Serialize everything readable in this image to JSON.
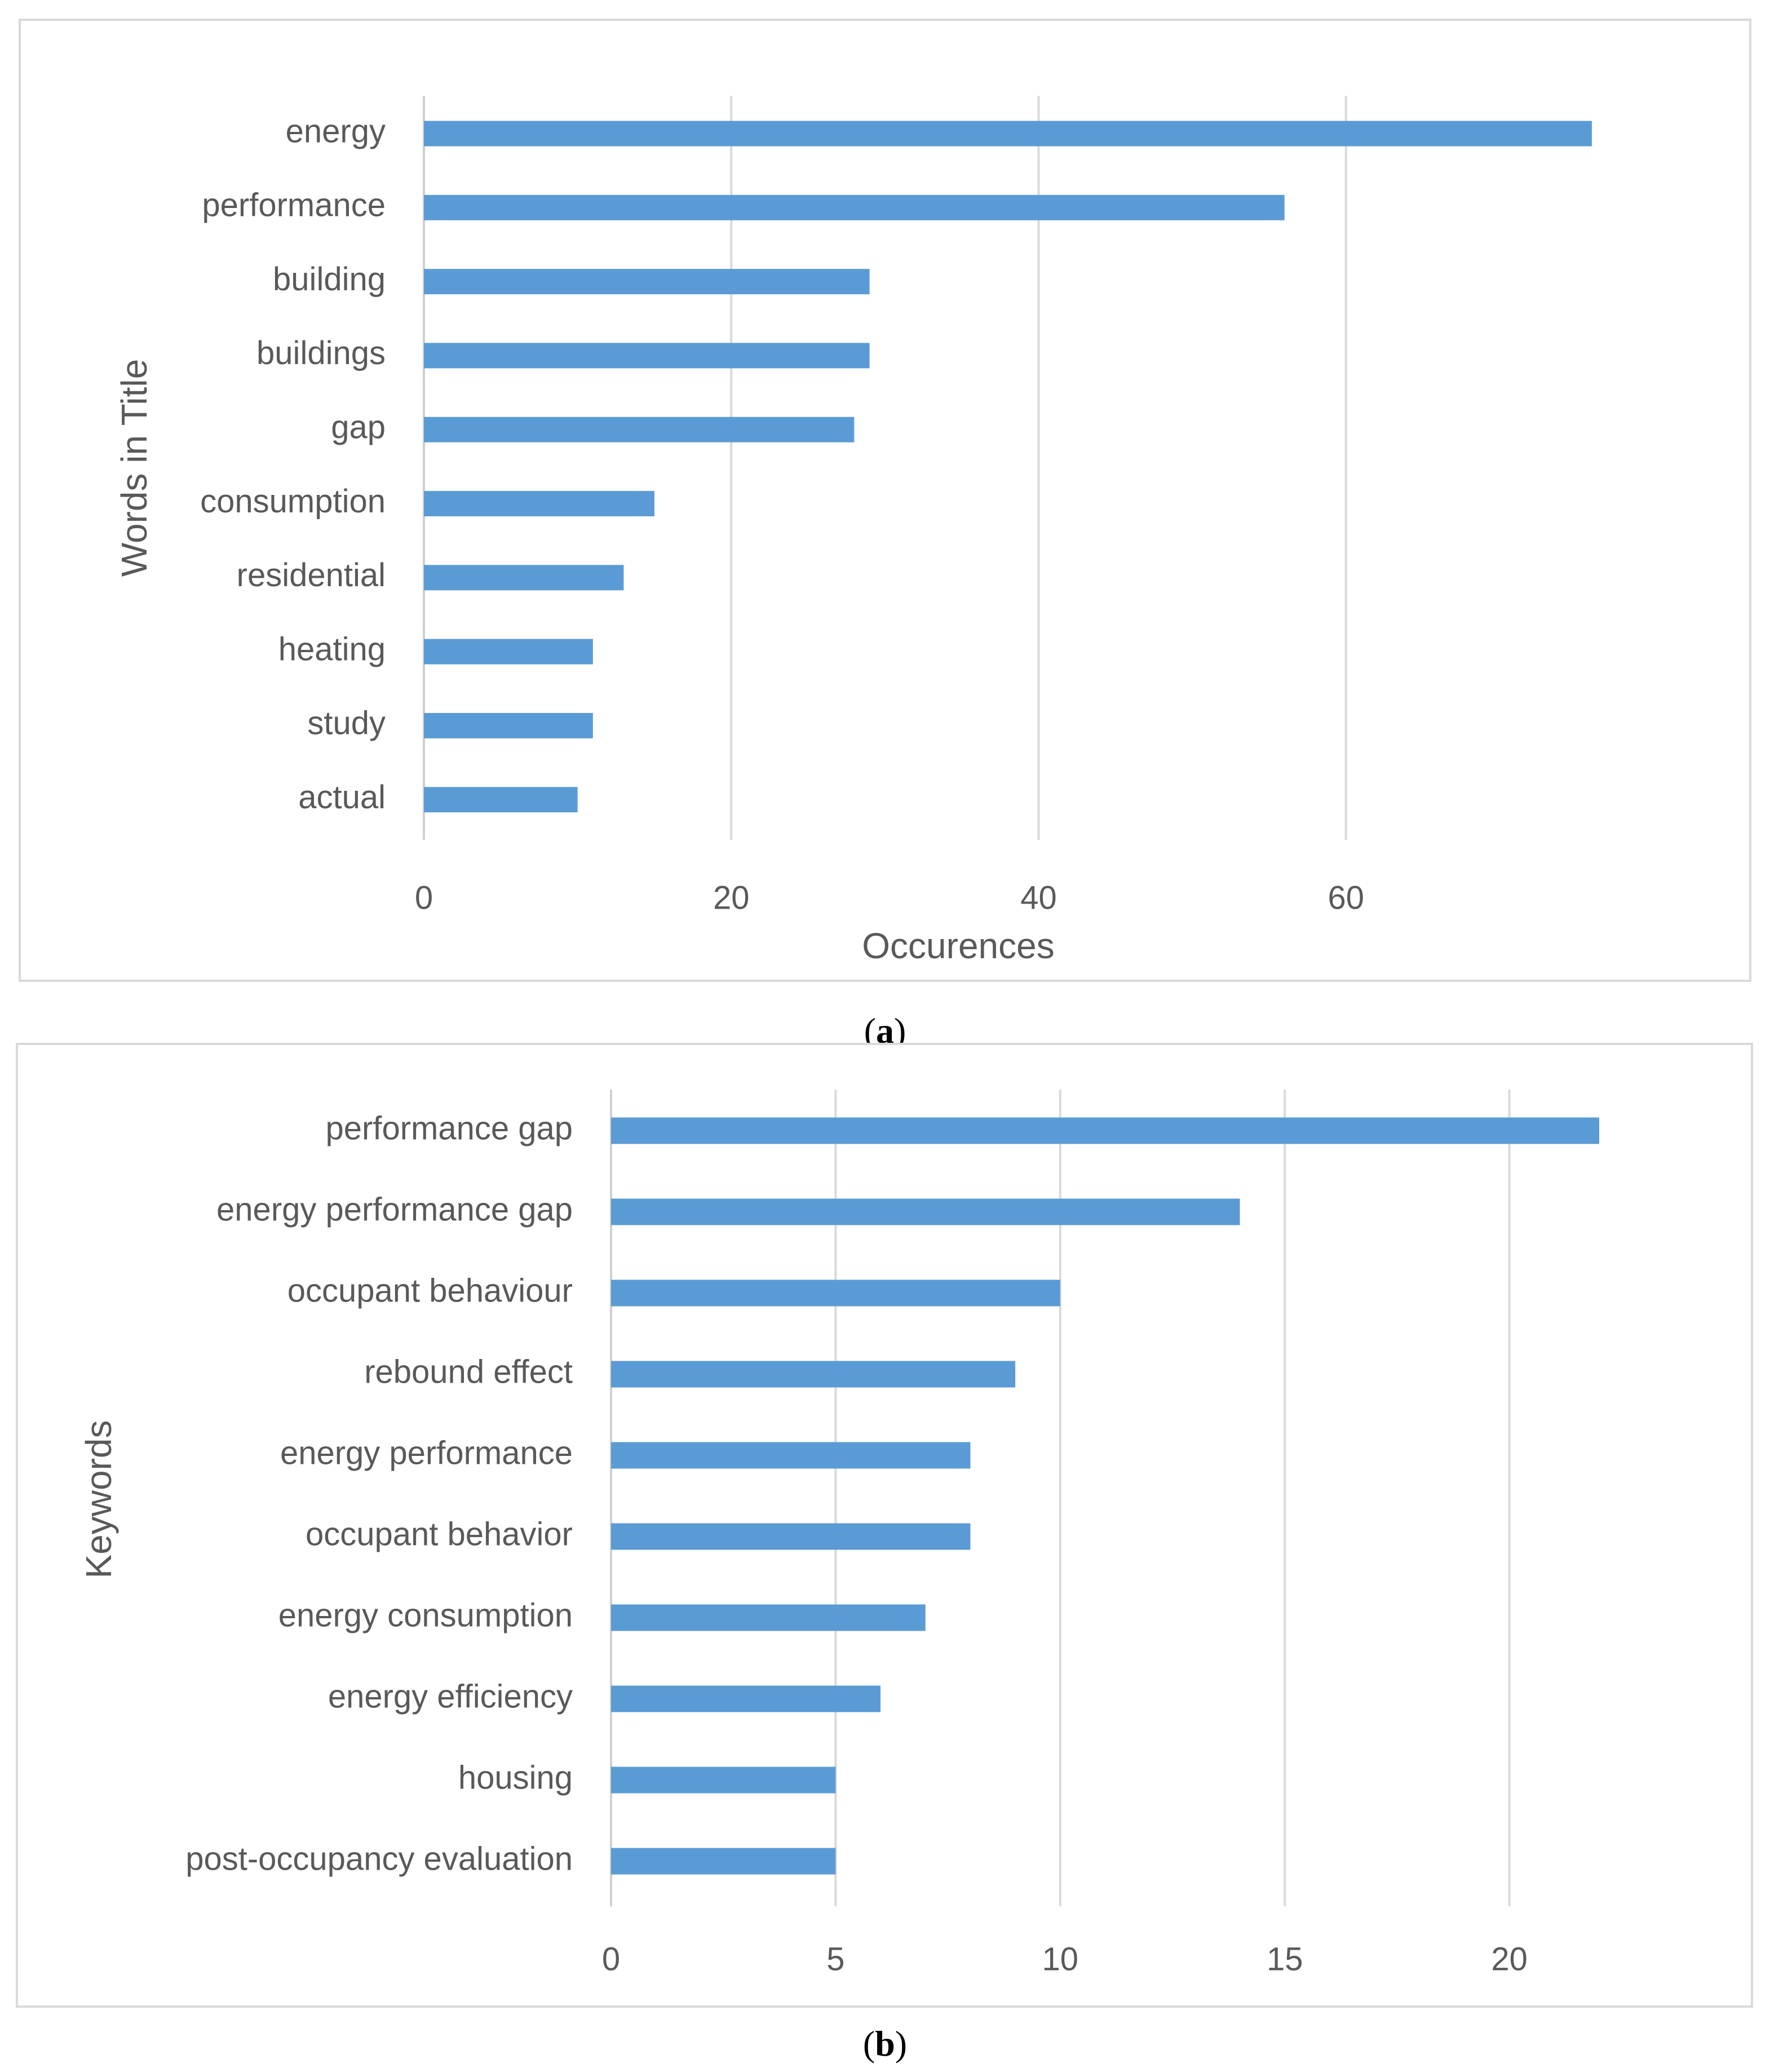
{
  "chart_data": [
    {
      "type": "bar",
      "orientation": "horizontal",
      "panel_label": "a",
      "title": "",
      "xlabel": "Occurences",
      "ylabel": "Words in Title",
      "categories": [
        "energy",
        "performance",
        "building",
        "buildings",
        "gap",
        "consumption",
        "residential",
        "heating",
        "study",
        "actual"
      ],
      "values": [
        76,
        56,
        29,
        29,
        28,
        15,
        13,
        11,
        11,
        10
      ],
      "xlim": [
        0,
        80
      ],
      "xticks": [
        0,
        20,
        40,
        60
      ],
      "grid": true,
      "bar_color": "#5b9bd5"
    },
    {
      "type": "bar",
      "orientation": "horizontal",
      "panel_label": "b",
      "title": "",
      "xlabel": "",
      "ylabel": "Keywords",
      "categories": [
        "performance gap",
        "energy performance gap",
        "occupant behaviour",
        "rebound effect",
        "energy performance",
        "occupant behavior",
        "energy consumption",
        "energy efficiency",
        "housing",
        "post-occupancy evaluation"
      ],
      "values": [
        22,
        14,
        10,
        9,
        8,
        8,
        7,
        6,
        5,
        5
      ],
      "xlim": [
        0,
        22
      ],
      "xticks": [
        0,
        5,
        10,
        15,
        20
      ],
      "grid": true,
      "bar_color": "#5b9bd5"
    }
  ]
}
